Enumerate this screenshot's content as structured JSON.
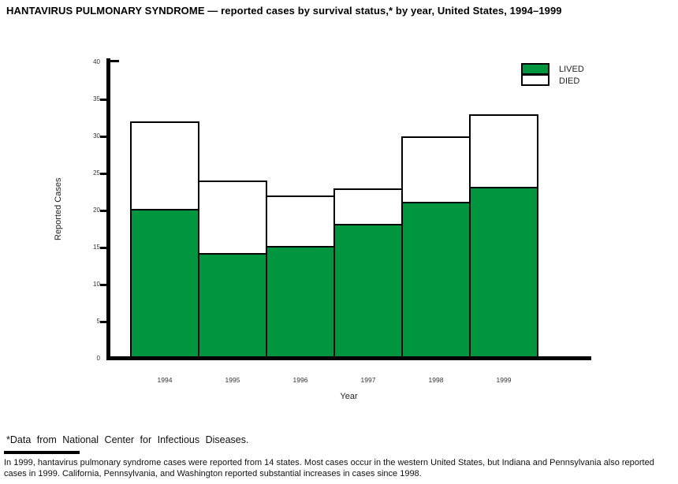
{
  "page": {
    "footnote": "*Data from National Center for Infectious Diseases.",
    "note": "In 1999, hantavirus pulmonary syndrome cases were reported from 14 states. Most cases occur in the western United States, but Indiana and Pennsylvania also reported cases in 1999. California, Pennsylvania, and Washington reported substantial increases in cases since 1998."
  },
  "chart_data": {
    "type": "bar",
    "stacked": true,
    "title": "HANTAVIRUS PULMONARY SYNDROME — reported cases by survival status,* by year, United States, 1994–1999",
    "categories": [
      "1994",
      "1995",
      "1996",
      "1997",
      "1998",
      "1999"
    ],
    "series": [
      {
        "name": "LIVED",
        "color": "#009640",
        "values": [
          20,
          14,
          15,
          18,
          21,
          23
        ]
      },
      {
        "name": "DIED",
        "color": "#ffffff",
        "values": [
          12,
          10,
          7,
          5,
          9,
          10
        ]
      }
    ],
    "stack_totals": [
      32,
      24,
      22,
      23,
      30,
      33
    ],
    "xlabel": "Year",
    "ylabel": "Reported Cases",
    "ylim": [
      0,
      40
    ],
    "yticks": [
      0,
      5,
      10,
      15,
      20,
      25,
      30,
      35,
      40
    ],
    "legend_position": "top-right",
    "grid": false,
    "axis_color": "#000000",
    "bar_outline_color": "#000000"
  }
}
